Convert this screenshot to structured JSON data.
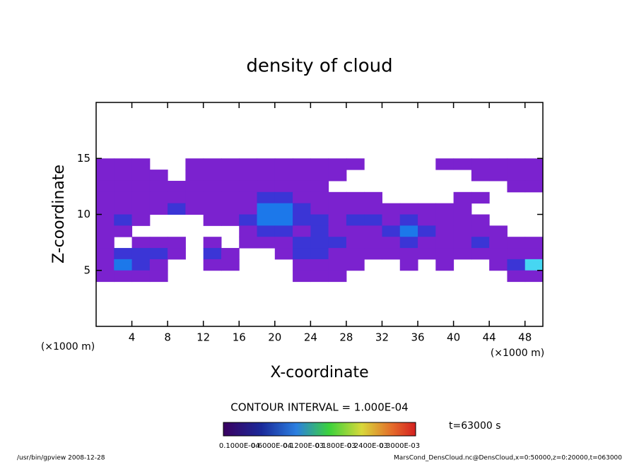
{
  "chart_data": {
    "type": "contour",
    "title": "density of cloud",
    "x_label": "X-coordinate",
    "y_label": "Z-coordinate",
    "x_unit": "(×1000 m)",
    "y_unit": "(×1000 m)",
    "contour_interval": "CONTOUR INTERVAL = 1.000E-04",
    "time_label": "t=63000 s",
    "footer_left": "/usr/bin/gpview  2008-12-28",
    "footer_right": "MarsCond_DensCloud.nc@DensCloud,x=0:50000,z=0:20000,t=063000",
    "xlim": [
      0,
      50
    ],
    "ylim": [
      0,
      20
    ],
    "xticks": [
      4,
      8,
      12,
      16,
      20,
      24,
      28,
      32,
      36,
      40,
      44,
      48
    ],
    "yticks": [
      5,
      10,
      15
    ],
    "x": [
      1,
      3,
      5,
      7,
      9,
      11,
      13,
      15,
      17,
      19,
      21,
      23,
      25,
      27,
      29,
      31,
      33,
      35,
      37,
      39,
      41,
      43,
      45,
      47,
      49
    ],
    "z": [
      14.5,
      13.5,
      12.5,
      11.5,
      10.5,
      9.5,
      8.5,
      7.5,
      6.5,
      5.5,
      4.5
    ],
    "levels": [
      0.0001,
      0.0002,
      0.0003,
      0.0004
    ],
    "colors": [
      "#7b22cf",
      "#3b35d6",
      "#1c78ea",
      "#46d6f2"
    ],
    "values": [
      [
        0.0001,
        0.0001,
        0.0001,
        null,
        null,
        0.0001,
        0.0001,
        0.0001,
        0.0001,
        0.0001,
        0.0001,
        0.0001,
        0.0001,
        0.0001,
        0.0001,
        null,
        null,
        null,
        null,
        0.0001,
        0.0001,
        0.0001,
        0.0001,
        0.0001,
        0.0001
      ],
      [
        0.0001,
        0.0001,
        0.0001,
        0.0001,
        null,
        0.0001,
        0.0001,
        0.0001,
        0.0001,
        0.0001,
        0.0001,
        0.0001,
        0.0001,
        0.0001,
        null,
        null,
        null,
        null,
        null,
        null,
        null,
        0.0001,
        0.0001,
        0.0001,
        0.0001
      ],
      [
        0.0001,
        0.0001,
        0.0001,
        0.0001,
        0.0001,
        0.0001,
        0.0001,
        0.0001,
        0.0001,
        0.0001,
        0.0001,
        0.0001,
        0.0001,
        null,
        null,
        null,
        null,
        null,
        null,
        null,
        null,
        null,
        null,
        0.0001,
        0.0001
      ],
      [
        0.0001,
        0.0001,
        0.0001,
        0.0001,
        0.0001,
        0.0001,
        0.0001,
        0.0001,
        0.0001,
        0.0002,
        0.0002,
        0.0001,
        0.0001,
        0.0001,
        0.0001,
        0.0001,
        null,
        null,
        null,
        null,
        0.0001,
        0.0001,
        null,
        null,
        null
      ],
      [
        0.0001,
        0.0001,
        0.0001,
        0.0001,
        0.0002,
        0.0001,
        0.0001,
        0.0001,
        0.0001,
        0.0003,
        0.0003,
        0.0002,
        0.0001,
        0.0001,
        0.0001,
        0.0001,
        0.0001,
        0.0001,
        0.0001,
        0.0001,
        0.0001,
        null,
        null,
        null,
        null
      ],
      [
        0.0001,
        0.0002,
        0.0001,
        null,
        null,
        null,
        0.0001,
        0.0001,
        0.0002,
        0.0003,
        0.0003,
        0.0002,
        0.0002,
        0.0001,
        0.0002,
        0.0002,
        0.0001,
        0.0002,
        0.0001,
        0.0001,
        0.0001,
        0.0001,
        null,
        null,
        null
      ],
      [
        0.0001,
        0.0001,
        null,
        null,
        null,
        null,
        null,
        null,
        0.0001,
        0.0002,
        0.0002,
        0.0001,
        0.0002,
        0.0001,
        0.0001,
        0.0001,
        0.0002,
        0.0003,
        0.0002,
        0.0001,
        0.0001,
        0.0001,
        0.0001,
        null,
        null
      ],
      [
        0.0001,
        null,
        0.0001,
        0.0001,
        0.0001,
        null,
        0.0001,
        null,
        0.0001,
        0.0001,
        0.0001,
        0.0002,
        0.0002,
        0.0002,
        0.0001,
        0.0001,
        0.0001,
        0.0002,
        0.0001,
        0.0001,
        0.0001,
        0.0002,
        0.0001,
        0.0001,
        0.0001
      ],
      [
        0.0001,
        0.0002,
        0.0002,
        0.0002,
        0.0001,
        null,
        0.0002,
        0.0001,
        null,
        null,
        0.0001,
        0.0002,
        0.0002,
        0.0001,
        0.0001,
        0.0001,
        0.0001,
        0.0001,
        0.0001,
        0.0001,
        0.0001,
        0.0001,
        0.0001,
        0.0001,
        0.0001
      ],
      [
        0.0001,
        0.0003,
        0.0002,
        0.0001,
        null,
        null,
        0.0001,
        0.0001,
        null,
        null,
        null,
        0.0001,
        0.0001,
        0.0001,
        0.0001,
        null,
        null,
        0.0001,
        null,
        0.0001,
        null,
        null,
        0.0001,
        0.0002,
        0.0004
      ],
      [
        0.0001,
        0.0001,
        0.0001,
        0.0001,
        null,
        null,
        null,
        null,
        null,
        null,
        null,
        0.0001,
        0.0001,
        0.0001,
        null,
        null,
        null,
        null,
        null,
        null,
        null,
        null,
        null,
        0.0001,
        0.0001
      ]
    ],
    "colorbar_labels": [
      "0.1000E-04",
      "0.6000E-04",
      "0.1200E-03",
      "0.1800E-03",
      "0.2400E-03",
      "0.3000E-03"
    ]
  }
}
